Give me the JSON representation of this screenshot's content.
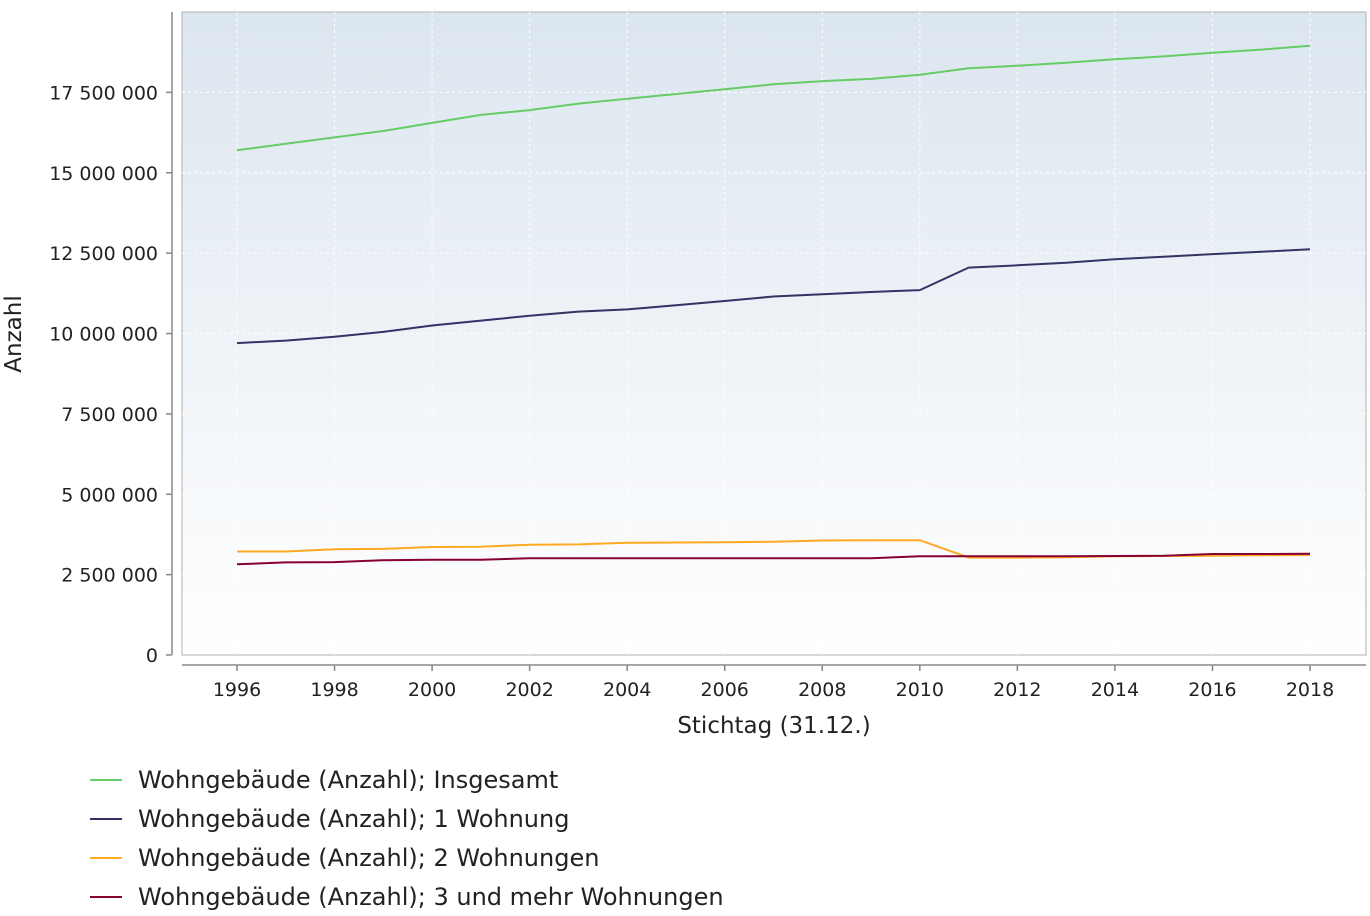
{
  "chart_data": {
    "type": "line",
    "xlabel": "Stichtag (31.12.)",
    "ylabel": "Anzahl",
    "xlim": [
      1995,
      2019
    ],
    "ylim": [
      0,
      20000000
    ],
    "x_ticks": [
      1996,
      1998,
      2000,
      2002,
      2004,
      2006,
      2008,
      2010,
      2012,
      2014,
      2016,
      2018
    ],
    "y_ticks": [
      0,
      2500000,
      5000000,
      7500000,
      10000000,
      12500000,
      15000000,
      17500000
    ],
    "y_tick_labels": [
      "0",
      "2 500 000",
      "5 000 000",
      "7 500 000",
      "10 000 000",
      "12 500 000",
      "15 000 000",
      "17 500 000"
    ],
    "grid": true,
    "legend_position": "bottom-left",
    "x": [
      1996,
      1997,
      1998,
      1999,
      2000,
      2001,
      2002,
      2003,
      2004,
      2005,
      2006,
      2007,
      2008,
      2009,
      2010,
      2011,
      2012,
      2013,
      2014,
      2015,
      2016,
      2017,
      2018
    ],
    "series": [
      {
        "name": "Wohngebäude (Anzahl); Insgesamt",
        "color": "#66cc66",
        "values": [
          15700000,
          15900000,
          16100000,
          16300000,
          16550000,
          16800000,
          16950000,
          17150000,
          17300000,
          17450000,
          17600000,
          17750000,
          17850000,
          17920000,
          18050000,
          18250000,
          18330000,
          18420000,
          18530000,
          18620000,
          18730000,
          18830000,
          18950000
        ]
      },
      {
        "name": "Wohngebäude (Anzahl); 1 Wohnung",
        "color": "#333366",
        "values": [
          9700000,
          9780000,
          9900000,
          10050000,
          10250000,
          10400000,
          10550000,
          10680000,
          10750000,
          10880000,
          11010000,
          11150000,
          11220000,
          11290000,
          11350000,
          12050000,
          12120000,
          12200000,
          12310000,
          12390000,
          12470000,
          12540000,
          12620000
        ]
      },
      {
        "name": "Wohngebäude (Anzahl); 2 Wohnungen",
        "color": "#ffaa22",
        "values": [
          3220000,
          3220000,
          3290000,
          3300000,
          3360000,
          3370000,
          3430000,
          3440000,
          3490000,
          3500000,
          3510000,
          3520000,
          3560000,
          3570000,
          3570000,
          3030000,
          3030000,
          3040000,
          3070000,
          3080000,
          3090000,
          3100000,
          3110000
        ]
      },
      {
        "name": "Wohngebäude (Anzahl); 3 und mehr Wohnungen",
        "color": "#880033",
        "values": [
          2820000,
          2880000,
          2890000,
          2950000,
          2960000,
          2960000,
          3010000,
          3010000,
          3010000,
          3010000,
          3010000,
          3010000,
          3010000,
          3010000,
          3070000,
          3070000,
          3070000,
          3070000,
          3080000,
          3090000,
          3140000,
          3140000,
          3150000
        ]
      }
    ]
  }
}
